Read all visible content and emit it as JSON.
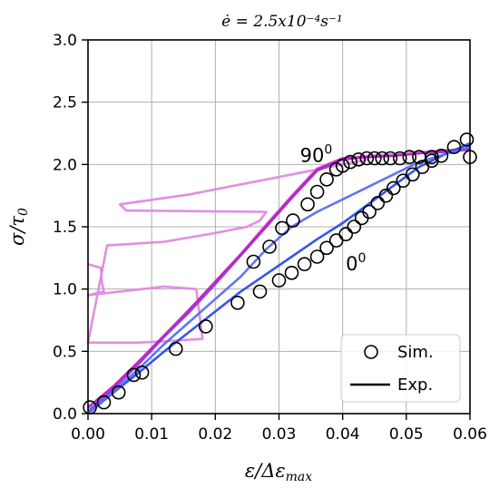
{
  "chart_data": {
    "type": "line",
    "title": "ė = 2.5x10⁻⁴s⁻¹",
    "xlabel": "ε/Δε",
    "xlabel_sub": "max",
    "ylabel": "σ/τ",
    "ylabel_sub": "0",
    "xlim": [
      0,
      0.06
    ],
    "ylim": [
      0,
      3.0
    ],
    "x_ticks": [
      "0.00",
      "0.01",
      "0.02",
      "0.03",
      "0.04",
      "0.05",
      "0.06"
    ],
    "y_ticks": [
      "0.0",
      "0.5",
      "1.0",
      "1.5",
      "2.0",
      "2.5",
      "3.0"
    ],
    "grid": true,
    "legend": {
      "position": "bottom-right",
      "entries": [
        "Sim.",
        "Exp."
      ]
    },
    "annotations": [
      {
        "text": "90",
        "sup": "0",
        "x": 0.0333,
        "y": 2.02
      },
      {
        "text": "0",
        "sup": "0",
        "x": 0.0405,
        "y": 1.15
      }
    ],
    "series": [
      {
        "kind": "exp-line",
        "color": "#e088e0",
        "x": [
          0.0,
          0.004,
          0.008,
          0.012,
          0.016,
          0.02,
          0.024,
          0.028,
          0.032,
          0.036,
          0.04,
          0.044,
          0.048,
          0.052,
          0.056,
          0.06
        ],
        "y": [
          0.0,
          0.22,
          0.42,
          0.62,
          0.84,
          1.05,
          1.28,
          1.52,
          1.75,
          1.97,
          2.05,
          2.07,
          2.08,
          2.1,
          2.11,
          2.12
        ]
      },
      {
        "kind": "exp-line",
        "color": "#e088e0",
        "x": [
          0.0,
          0.002,
          0.0022,
          0.0025,
          0.0,
          0.005,
          0.012,
          0.017,
          0.018,
          0.012,
          0.008,
          0.0,
          0.003,
          0.012,
          0.02,
          0.025,
          0.027,
          0.028,
          0.027,
          0.006,
          0.005,
          0.016,
          0.024,
          0.03,
          0.035,
          0.04,
          0.044
        ],
        "y": [
          1.2,
          1.17,
          1.05,
          0.98,
          0.95,
          0.98,
          1.02,
          1.0,
          0.6,
          0.58,
          0.57,
          0.57,
          1.35,
          1.38,
          1.45,
          1.5,
          1.55,
          1.62,
          1.62,
          1.63,
          1.68,
          1.76,
          1.84,
          1.9,
          1.95,
          2.0,
          2.04
        ]
      },
      {
        "kind": "exp-line",
        "color": "#8a3de8",
        "x": [
          0.0,
          0.004,
          0.008,
          0.012,
          0.016,
          0.02,
          0.024,
          0.028,
          0.032,
          0.036,
          0.04,
          0.044,
          0.048,
          0.052,
          0.056,
          0.06
        ],
        "y": [
          0.02,
          0.2,
          0.4,
          0.62,
          0.82,
          1.04,
          1.27,
          1.5,
          1.73,
          1.95,
          2.04,
          2.06,
          2.07,
          2.09,
          2.1,
          2.12
        ]
      },
      {
        "kind": "exp-line",
        "color": "#c21fc2",
        "x": [
          0.0,
          0.004,
          0.008,
          0.012,
          0.016,
          0.02,
          0.024,
          0.028,
          0.032,
          0.036,
          0.04,
          0.044,
          0.048,
          0.052,
          0.056,
          0.06
        ],
        "y": [
          0.05,
          0.22,
          0.42,
          0.63,
          0.84,
          1.06,
          1.28,
          1.51,
          1.74,
          1.96,
          2.05,
          2.06,
          2.07,
          2.09,
          2.11,
          2.13
        ]
      },
      {
        "kind": "exp-line",
        "color": "#2a4de8",
        "x": [
          0.0,
          0.004,
          0.008,
          0.012,
          0.016,
          0.02,
          0.024,
          0.028,
          0.032,
          0.036,
          0.04,
          0.044,
          0.048,
          0.052,
          0.056,
          0.06
        ],
        "y": [
          0.0,
          0.17,
          0.33,
          0.5,
          0.66,
          0.82,
          0.98,
          1.12,
          1.26,
          1.4,
          1.53,
          1.68,
          1.83,
          1.98,
          2.08,
          2.17
        ]
      },
      {
        "kind": "exp-line",
        "color": "#5a6ef5",
        "x": [
          0.0,
          0.004,
          0.008,
          0.012,
          0.016,
          0.02,
          0.024,
          0.028,
          0.032,
          0.036,
          0.04,
          0.044,
          0.048,
          0.052,
          0.056,
          0.06
        ],
        "y": [
          0.0,
          0.18,
          0.36,
          0.56,
          0.74,
          0.92,
          1.1,
          1.32,
          1.5,
          1.62,
          1.72,
          1.82,
          1.92,
          2.02,
          2.08,
          2.14
        ]
      },
      {
        "kind": "sim-markers",
        "name": "Sim.",
        "x": [
          0.0003,
          0.0025,
          0.0048,
          0.0072,
          0.0085,
          0.0138,
          0.0185,
          0.0235,
          0.027,
          0.03,
          0.032,
          0.034,
          0.036,
          0.0375,
          0.039,
          0.0405,
          0.0418,
          0.043,
          0.0442,
          0.0455,
          0.0468,
          0.048,
          0.0495,
          0.051,
          0.0525,
          0.054,
          0.0555,
          0.0575,
          0.0595,
          0.06,
          0.026,
          0.0285,
          0.0305,
          0.0322,
          0.0345,
          0.036,
          0.0375,
          0.039,
          0.04,
          0.0412,
          0.0425,
          0.0438,
          0.045,
          0.0462,
          0.0475,
          0.049,
          0.0505,
          0.052,
          0.054
        ],
        "y": [
          0.05,
          0.09,
          0.17,
          0.31,
          0.33,
          0.52,
          0.7,
          0.89,
          0.98,
          1.07,
          1.13,
          1.2,
          1.26,
          1.33,
          1.39,
          1.44,
          1.5,
          1.57,
          1.62,
          1.69,
          1.75,
          1.81,
          1.87,
          1.92,
          1.98,
          2.03,
          2.07,
          2.14,
          2.2,
          2.06,
          1.22,
          1.34,
          1.49,
          1.55,
          1.68,
          1.78,
          1.88,
          1.96,
          1.99,
          2.02,
          2.04,
          2.05,
          2.05,
          2.05,
          2.05,
          2.05,
          2.06,
          2.06,
          2.06
        ]
      }
    ]
  }
}
